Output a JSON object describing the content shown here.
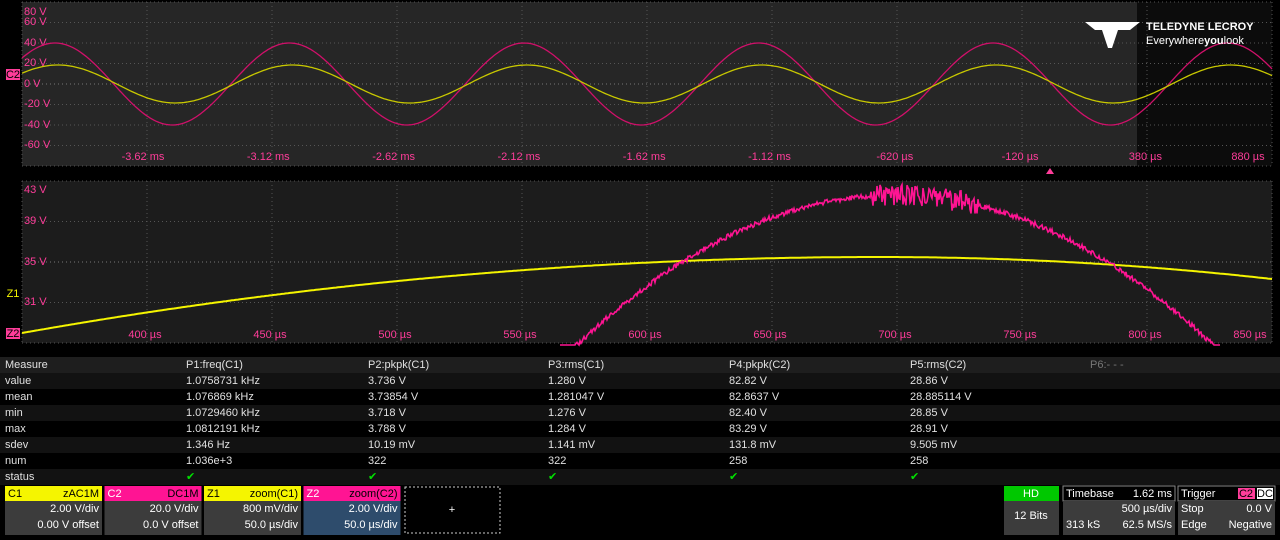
{
  "logo": {
    "brand": "TELEDYNE LECROY",
    "tag_a": "Everywhere",
    "tag_b": "you",
    "tag_c": "look"
  },
  "top_grid": {
    "marker": "C2",
    "y_labels": [
      "80 V",
      "60 V",
      "40 V",
      "20 V",
      "0 V",
      "-20 V",
      "-40 V",
      "-60 V"
    ],
    "x_labels": [
      "-3.62 ms",
      "-3.12 ms",
      "-2.62 ms",
      "-2.12 ms",
      "-1.62 ms",
      "-1.12 ms",
      "-620 µs",
      "-120 µs",
      "380 µs",
      "880 µs"
    ]
  },
  "zoom_grid": {
    "markers": [
      "Z1",
      "Z2"
    ],
    "y_labels": [
      "43 V",
      "39 V",
      "35 V",
      "31 V"
    ],
    "x_labels": [
      "400 µs",
      "450 µs",
      "500 µs",
      "550 µs",
      "600 µs",
      "650 µs",
      "700 µs",
      "750 µs",
      "800 µs",
      "850 µs"
    ]
  },
  "measure": {
    "header": [
      "Measure",
      "P1:freq(C1)",
      "P2:pkpk(C1)",
      "P3:rms(C1)",
      "P4:pkpk(C2)",
      "P5:rms(C2)",
      "P6:- - -"
    ],
    "rows": [
      [
        "value",
        "1.0758731 kHz",
        "3.736 V",
        "1.280 V",
        "82.82 V",
        "28.86 V"
      ],
      [
        "mean",
        "1.076869 kHz",
        "3.73854 V",
        "1.281047 V",
        "82.8637 V",
        "28.885114 V"
      ],
      [
        "min",
        "1.0729460 kHz",
        "3.718 V",
        "1.276 V",
        "82.40 V",
        "28.85 V"
      ],
      [
        "max",
        "1.0812191 kHz",
        "3.788 V",
        "1.284 V",
        "83.29 V",
        "28.91 V"
      ],
      [
        "sdev",
        "1.346 Hz",
        "10.19 mV",
        "1.141 mV",
        "131.8 mV",
        "9.505 mV"
      ],
      [
        "num",
        "1.036e+3",
        "322",
        "322",
        "258",
        "258"
      ],
      [
        "status",
        "✔",
        "✔",
        "✔",
        "✔",
        "✔"
      ]
    ]
  },
  "channels": [
    {
      "name": "C1",
      "tag": "zAC1M",
      "scale": "2.00 V/div",
      "offset": "0.00 V offset",
      "color": "#f5f500"
    },
    {
      "name": "C2",
      "tag": "DC1M",
      "scale": "20.0 V/div",
      "offset": "0.0 V offset",
      "color": "#ff1493"
    },
    {
      "name": "Z1",
      "tag": "zoom(C1)",
      "scale": "800 mV/div",
      "offset": "50.0 µs/div",
      "color": "#f5f500"
    },
    {
      "name": "Z2",
      "tag": "zoom(C2)",
      "scale": "2.00 V/div",
      "offset": "50.0 µs/div",
      "color": "#ff1493"
    }
  ],
  "add_button": "+",
  "hd": {
    "title": "HD",
    "bits": "12 Bits"
  },
  "timebase": {
    "title": "Timebase",
    "delay": "1.62 ms",
    "scale": "500 µs/div",
    "samples": "313 kS",
    "rate": "62.5 MS/s"
  },
  "trigger": {
    "title": "Trigger",
    "source": "C2",
    "coupling": "DC",
    "mode": "Stop",
    "level": "0.0 V",
    "type": "Edge",
    "slope": "Negative"
  }
}
